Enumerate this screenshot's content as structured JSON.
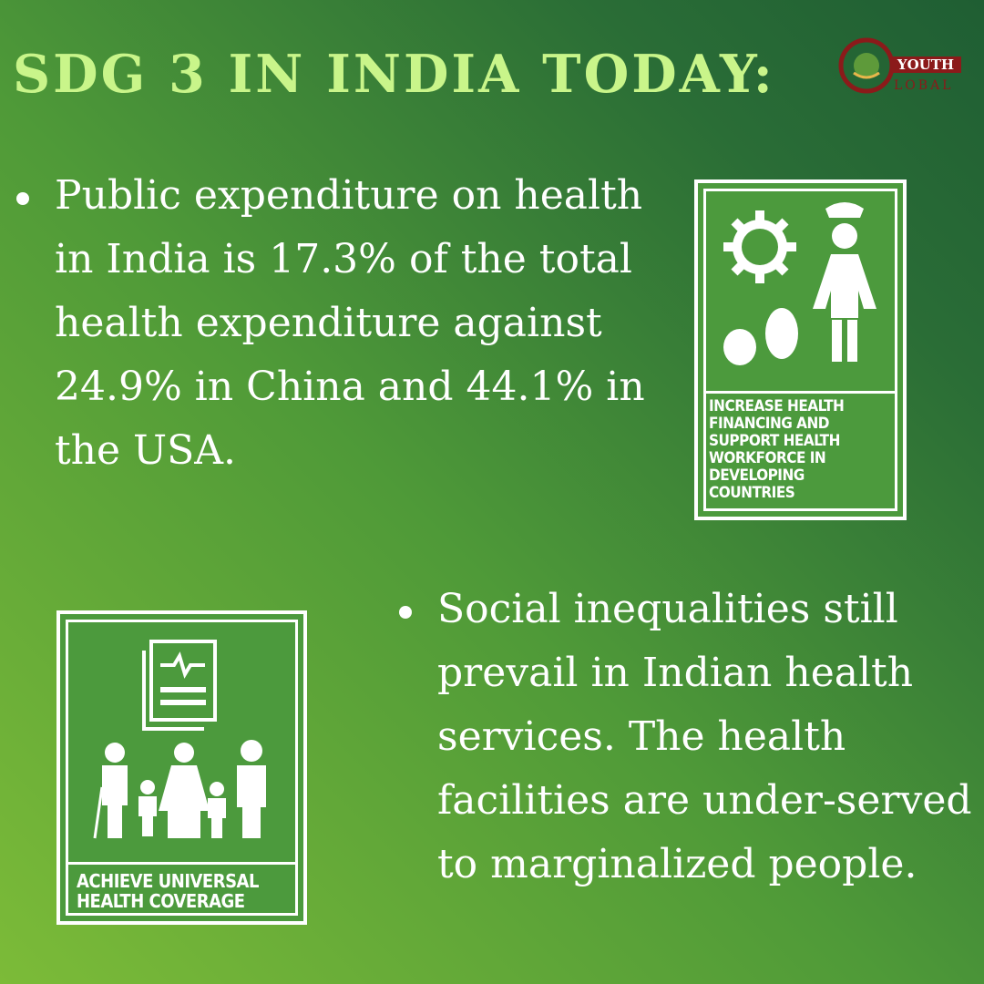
{
  "header": {
    "title": "SDG 3 IN INDIA TODAY:",
    "logo": {
      "top": "YOUTH",
      "bottom": "LOBAL"
    }
  },
  "bullets": [
    "Public expenditure on health in India is 17.3% of the total health expenditure against 24.9% in China and 44.1% in the USA.",
    "Social inequalities still prevail in Indian health services. The health facilities are under-served to marginalized people."
  ],
  "cards": [
    {
      "label": [
        "INCREASE HEALTH",
        "FINANCING AND",
        "SUPPORT HEALTH",
        "WORKFORCE  IN",
        "DEVELOPING",
        "COUNTRIES"
      ]
    },
    {
      "label": [
        "ACHIEVE UNIVERSAL",
        "HEALTH COVERAGE"
      ]
    }
  ]
}
